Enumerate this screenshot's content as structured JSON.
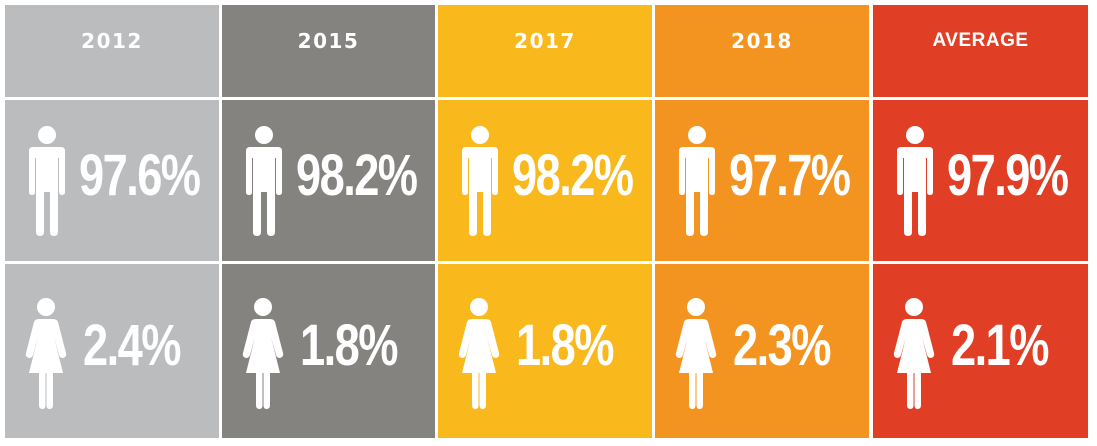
{
  "chart_data": {
    "type": "table",
    "columns": [
      {
        "year": "2012",
        "men": "97.6%",
        "women": "2.4%",
        "color": "#bbbcbe"
      },
      {
        "year": "2015",
        "men": "98.2%",
        "women": "1.8%",
        "color": "#858380"
      },
      {
        "year": "2017",
        "men": "98.2%",
        "women": "1.8%",
        "color": "#f9b81b"
      },
      {
        "year": "2018",
        "men": "97.7%",
        "women": "2.3%",
        "color": "#f49420"
      },
      {
        "year": "AVERAGE",
        "men": "97.9%",
        "women": "2.1%",
        "color": "#e03f26"
      }
    ],
    "rows": [
      "men-icon",
      "women-icon"
    ],
    "men_values": [
      97.6,
      98.2,
      98.2,
      97.7,
      97.9
    ],
    "women_values": [
      2.4,
      1.8,
      1.8,
      2.3,
      2.1
    ]
  }
}
